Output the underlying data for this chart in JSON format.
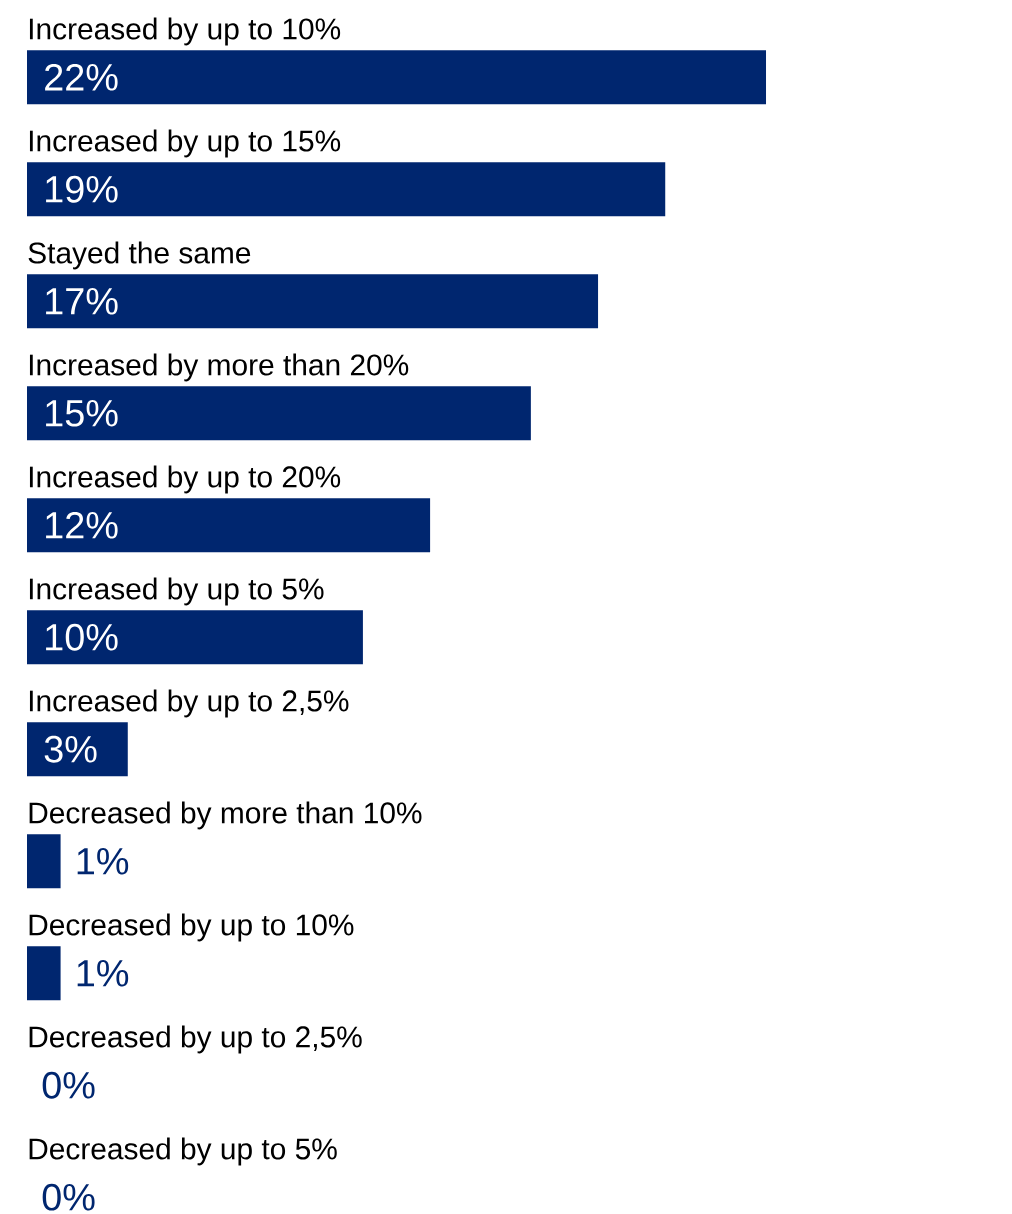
{
  "chart_data": {
    "type": "bar",
    "orientation": "horizontal",
    "categories": [
      "Increased by up to 10%",
      "Increased by up to 15%",
      "Stayed the same",
      "Increased by more than 20%",
      "Increased by up to 20%",
      "Increased by up to 5%",
      "Increased by up to 2,5%",
      "Decreased by more than 10%",
      "Decreased by up to 10%",
      "Decreased by up to 2,5%",
      "Decreased by up to 5%"
    ],
    "values": [
      22,
      19,
      17,
      15,
      12,
      10,
      3,
      1,
      1,
      0,
      0
    ],
    "value_labels": [
      "22%",
      "19%",
      "17%",
      "15%",
      "12%",
      "10%",
      "3%",
      "1%",
      "1%",
      "0%",
      "0%"
    ],
    "color": "#00266f"
  }
}
